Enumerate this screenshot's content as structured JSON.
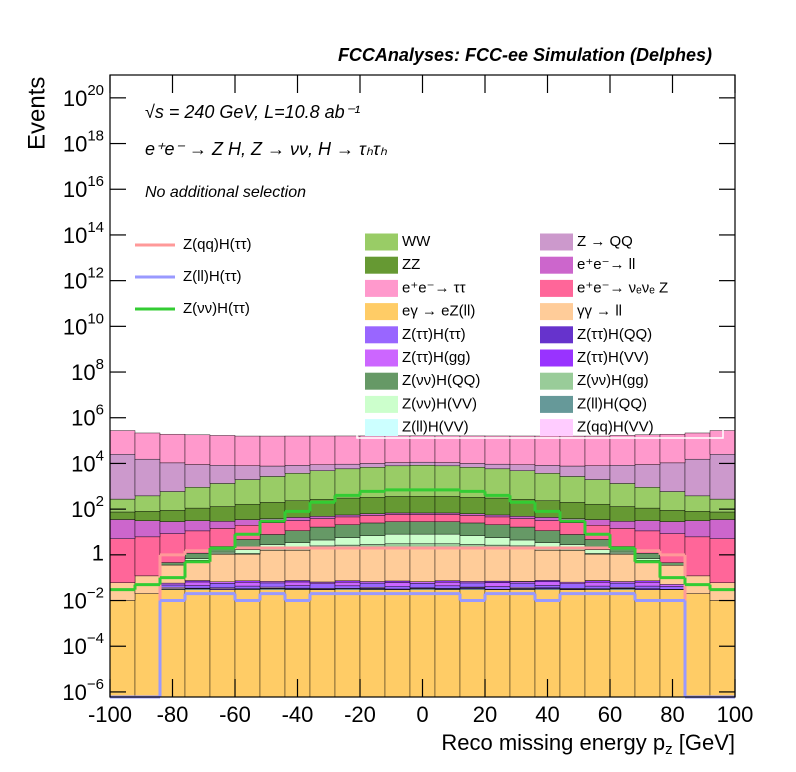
{
  "chart_data": {
    "type": "stacked-histogram",
    "title": "FCCAnalyses: FCC-ee Simulation (Delphes)",
    "annotations": [
      "√s = 240 GeV, L=10.8 ab⁻¹",
      "e⁺e⁻ → Z H, Z → νν, H → τₕτₕ",
      "No additional selection"
    ],
    "y_label": "Events",
    "x_label": [
      "Reco missing energy p",
      "z",
      " [GeV]"
    ],
    "log_y": true,
    "xlim": [
      -100,
      100
    ],
    "xticks": [
      -100,
      -80,
      -60,
      -40,
      -20,
      0,
      20,
      40,
      60,
      80,
      100
    ],
    "ylim": [
      6e-07,
      1e+21
    ],
    "yticks": [
      {
        "value": 1e-06,
        "label": "10",
        "exp": "−6"
      },
      {
        "value": 0.0001,
        "label": "10",
        "exp": "−4"
      },
      {
        "value": 0.01,
        "label": "10",
        "exp": "−2"
      },
      1,
      {
        "value": 100,
        "label": "10",
        "exp": "2"
      },
      {
        "value": 10000,
        "label": "10",
        "exp": "4"
      },
      {
        "value": 1000000,
        "label": "10",
        "exp": "6"
      },
      {
        "value": 100000000.0,
        "label": "10",
        "exp": "8"
      },
      {
        "value": 10000000000.0,
        "label": "10",
        "exp": "10"
      },
      {
        "value": 1000000000000.0,
        "label": "10",
        "exp": "12"
      },
      {
        "value": 100000000000000.0,
        "label": "10",
        "exp": "14"
      },
      {
        "value": 1e+16,
        "label": "10",
        "exp": "16"
      },
      {
        "value": 1e+18,
        "label": "10",
        "exp": "18"
      },
      {
        "value": 1e+20,
        "label": "10",
        "exp": "20"
      }
    ],
    "bins": [
      -100,
      -92,
      -84,
      -76,
      -68,
      -60,
      -52,
      -44,
      -36,
      -28,
      -20,
      -12,
      -4,
      4,
      12,
      20,
      28,
      36,
      44,
      52,
      60,
      68,
      76,
      84,
      92,
      100
    ],
    "series": [
      {
        "name": "eγ → eZ(ll)",
        "color": "#ffcc66",
        "values": [
          0.01,
          0.02,
          0.03,
          0.03,
          0.03,
          0.03,
          0.03,
          0.03,
          0.03,
          0.03,
          0.03,
          0.03,
          0.03,
          0.03,
          0.03,
          0.03,
          0.03,
          0.03,
          0.03,
          0.03,
          0.03,
          0.03,
          0.03,
          0.02,
          0.01
        ]
      },
      {
        "name": "Z(ll)H(VV)",
        "color": "#ccffff",
        "values": [
          0,
          0,
          0.002,
          0.003,
          0,
          0.002,
          0.003,
          0.002,
          0,
          0.003,
          0.002,
          0,
          0.003,
          0.002,
          0.003,
          0,
          0.002,
          0.003,
          0,
          0.002,
          0.003,
          0,
          0,
          0,
          0
        ]
      },
      {
        "name": "Z(ττ)H(QQ)",
        "color": "#6633cc",
        "values": [
          0,
          0,
          0.001,
          0.002,
          0.003,
          0.001,
          0.002,
          0.003,
          0.002,
          0.001,
          0.003,
          0.002,
          0.001,
          0.002,
          0.003,
          0.001,
          0.002,
          0.003,
          0.002,
          0.001,
          0.002,
          0.003,
          0.001,
          0,
          0
        ]
      },
      {
        "name": "Z(qq)H(VV)",
        "color": "#ffccff",
        "values": [
          0,
          0,
          0.005,
          0,
          0.003,
          0,
          0.004,
          0,
          0.002,
          0,
          0.003,
          0,
          0.002,
          0,
          0.003,
          0,
          0.004,
          0,
          0.002,
          0,
          0.003,
          0,
          0,
          0,
          0
        ]
      },
      {
        "name": "Z(ττ)H(ττ)",
        "color": "#9966ff",
        "values": [
          0,
          0,
          0.01,
          0.01,
          0.02,
          0.01,
          0.02,
          0.01,
          0.02,
          0.01,
          0.02,
          0.01,
          0.02,
          0.01,
          0.02,
          0.01,
          0.02,
          0.01,
          0.02,
          0.01,
          0.02,
          0.01,
          0.01,
          0,
          0
        ]
      },
      {
        "name": "Z(ττ)H(gg)",
        "color": "#cc66ff",
        "values": [
          0,
          0,
          0.01,
          0.02,
          0.01,
          0.02,
          0.01,
          0.02,
          0.01,
          0.02,
          0.01,
          0.02,
          0.01,
          0.02,
          0.01,
          0.02,
          0.01,
          0.02,
          0.01,
          0.02,
          0.01,
          0.02,
          0.01,
          0,
          0
        ]
      },
      {
        "name": "Z(ττ)H(VV)",
        "color": "#9933ff",
        "values": [
          0,
          0,
          0,
          0.01,
          0,
          0.01,
          0,
          0.01,
          0,
          0.01,
          0,
          0.01,
          0,
          0.01,
          0,
          0.01,
          0,
          0.01,
          0,
          0.01,
          0,
          0.01,
          0,
          0,
          0
        ]
      },
      {
        "name": "Z(ll)H(QQ)",
        "color": "#669999",
        "values": [
          0,
          0,
          0,
          0,
          0,
          0,
          0,
          0,
          0.001,
          0,
          0,
          0,
          0.001,
          0,
          0,
          0,
          0.001,
          0,
          0,
          0.002,
          0,
          0,
          0,
          0,
          0
        ]
      },
      {
        "name": "γγ → ll",
        "color": "#ffcc99",
        "values": [
          0.05,
          0.1,
          0.3,
          0.5,
          1,
          1,
          1.5,
          1.5,
          2,
          2,
          2,
          2,
          2,
          2,
          2,
          2,
          2,
          1.5,
          1.5,
          1,
          1,
          0.5,
          0.3,
          0.1,
          0.05
        ]
      },
      {
        "name": "Z(νν)H(gg)",
        "color": "#99cc99",
        "values": [
          0,
          0,
          0,
          0,
          0.05,
          0.1,
          0.2,
          0.3,
          0.4,
          0.6,
          0.8,
          1,
          1,
          1,
          0.8,
          0.6,
          0.4,
          0.3,
          0.2,
          0.1,
          0.05,
          0,
          0,
          0,
          0
        ]
      },
      {
        "name": "Z(νν)H(VV)",
        "color": "#ccffcc",
        "values": [
          0,
          0,
          0,
          0.1,
          0.2,
          0.5,
          1,
          1.5,
          2,
          3,
          4,
          5,
          5,
          5,
          4,
          3,
          2,
          1.5,
          1,
          0.5,
          0.2,
          0.1,
          0,
          0,
          0
        ]
      },
      {
        "name": "Z(νν)H(QQ)",
        "color": "#669966",
        "values": [
          0,
          0,
          0.1,
          0.5,
          1,
          3,
          5,
          8,
          12,
          15,
          18,
          20,
          20,
          20,
          18,
          15,
          12,
          8,
          5,
          3,
          1,
          0.5,
          0.1,
          0,
          0
        ]
      },
      {
        "name": "e⁺e⁻→ νₑνₑ Z",
        "color": "#ff6699",
        "values": [
          5,
          6,
          8,
          10,
          12,
          15,
          18,
          20,
          22,
          25,
          28,
          30,
          30,
          30,
          28,
          25,
          22,
          20,
          18,
          15,
          12,
          10,
          8,
          6,
          5
        ]
      },
      {
        "name": "e⁺e⁻→ ll",
        "color": "#cc66cc",
        "values": [
          30,
          25,
          20,
          20,
          15,
          15,
          12,
          12,
          10,
          10,
          10,
          10,
          10,
          10,
          10,
          10,
          10,
          12,
          12,
          15,
          15,
          20,
          20,
          25,
          30
        ]
      },
      {
        "name": "ZZ",
        "color": "#669933",
        "values": [
          40,
          50,
          60,
          80,
          100,
          130,
          160,
          190,
          220,
          250,
          270,
          290,
          300,
          290,
          270,
          250,
          220,
          190,
          160,
          130,
          100,
          80,
          60,
          50,
          40
        ]
      },
      {
        "name": "WW",
        "color": "#99cc66",
        "values": [
          200,
          300,
          500,
          800,
          1200,
          1800,
          2500,
          3500,
          4500,
          5500,
          6500,
          7500,
          8000,
          7500,
          6500,
          5500,
          4500,
          3500,
          2500,
          1800,
          1200,
          800,
          500,
          300,
          200
        ]
      },
      {
        "name": "Z → QQ",
        "color": "#cc99cc",
        "values": [
          25000,
          15000,
          10000,
          8000,
          7000,
          6000,
          5000,
          4500,
          4000,
          3500,
          3200,
          3000,
          3000,
          3000,
          3200,
          3500,
          4000,
          4500,
          5000,
          6000,
          7000,
          8000,
          10000,
          15000,
          25000
        ]
      },
      {
        "name": "e⁺e⁻→ ττ",
        "color": "#ff99cc",
        "values": [
          250000,
          200000,
          180000,
          170000,
          160000,
          150000,
          150000,
          150000,
          150000,
          150000,
          150000,
          150000,
          150000,
          150000,
          150000,
          150000,
          150000,
          150000,
          150000,
          150000,
          160000,
          170000,
          180000,
          200000,
          250000
        ]
      }
    ],
    "signals": [
      {
        "name": "Z(qq)H(ττ)",
        "color": "#ff9999",
        "values": [
          0,
          0,
          1,
          1.5,
          2,
          2,
          2,
          2,
          2,
          2,
          2,
          2,
          2,
          2,
          2,
          2,
          2,
          2,
          2,
          2,
          2,
          1.5,
          1,
          0,
          0
        ]
      },
      {
        "name": "Z(ll)H(ττ)",
        "color": "#9999ff",
        "values": [
          0,
          0,
          0.01,
          0.02,
          0.02,
          0.01,
          0.02,
          0.01,
          0.02,
          0.02,
          0.02,
          0.02,
          0.02,
          0.02,
          0.01,
          0.02,
          0.02,
          0.01,
          0.02,
          0.02,
          0.02,
          0.01,
          0.01,
          0,
          0
        ]
      },
      {
        "name": "Z(νν)H(ττ)",
        "color": "#33cc33",
        "values": [
          0.03,
          0.05,
          0.1,
          0.5,
          2,
          8,
          30,
          80,
          200,
          400,
          600,
          700,
          700,
          700,
          600,
          400,
          200,
          80,
          30,
          8,
          2,
          0.5,
          0.1,
          0.05,
          0.03
        ]
      }
    ]
  }
}
